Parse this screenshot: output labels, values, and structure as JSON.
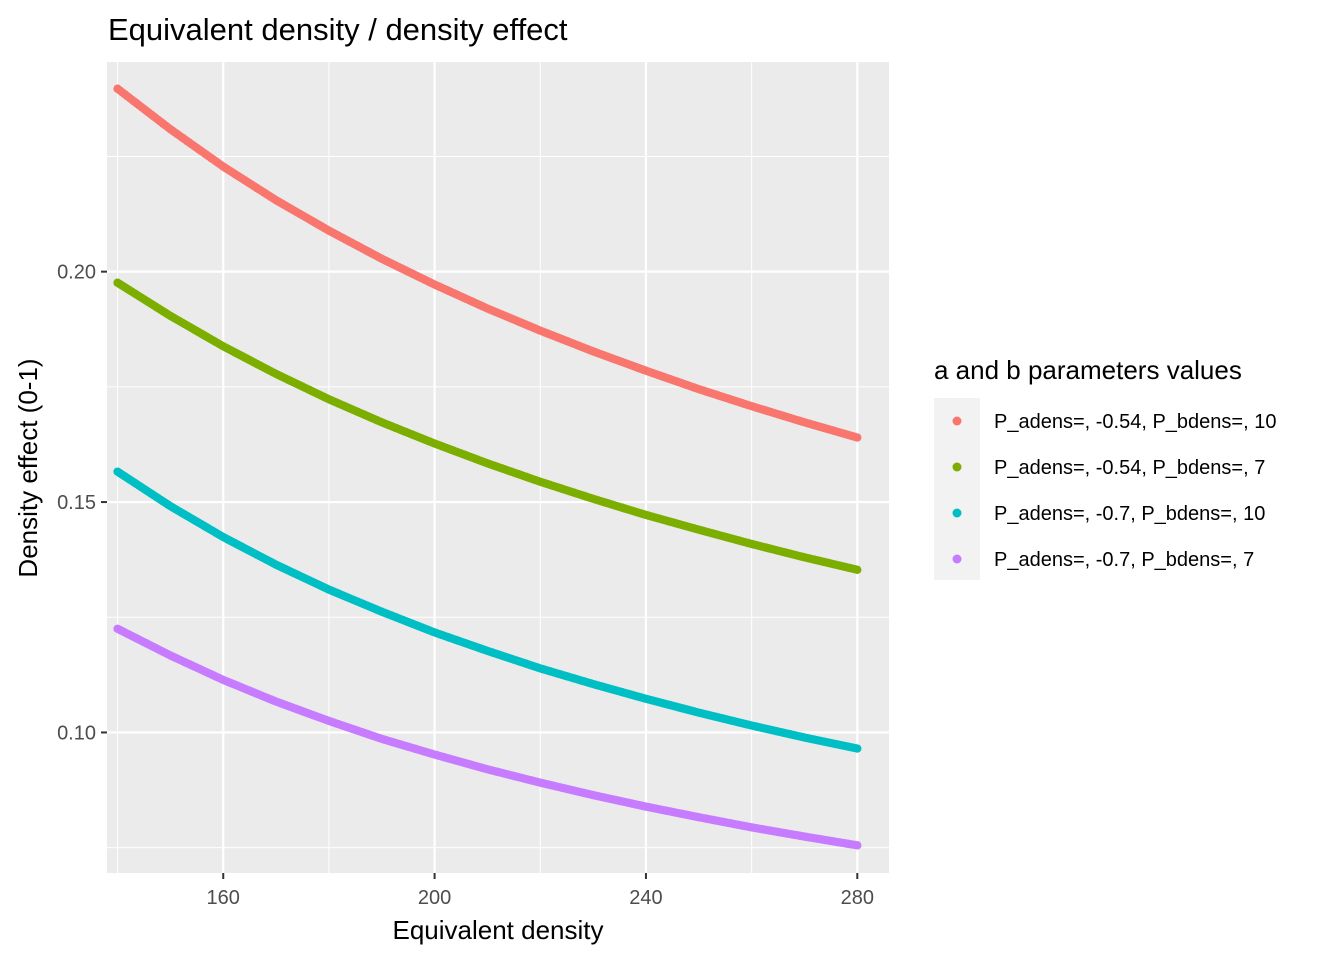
{
  "chart_data": {
    "type": "scatter",
    "title": "Equivalent density / density effect",
    "xlabel": "Equivalent density",
    "ylabel": "Density effect (0-1)",
    "xlim": [
      138,
      286
    ],
    "ylim": [
      0.0695,
      0.2455
    ],
    "x_ticks": [
      160,
      200,
      240,
      280
    ],
    "x_tick_labels": [
      "160",
      "200",
      "240",
      "280"
    ],
    "y_ticks": [
      0.1,
      0.15,
      0.2
    ],
    "y_tick_labels": [
      "0.10",
      "0.15",
      "0.20"
    ],
    "grid": true,
    "legend": {
      "title": "a and b parameters values",
      "position": "right"
    },
    "x": [
      140,
      150,
      160,
      170,
      180,
      190,
      200,
      210,
      220,
      230,
      240,
      250,
      260,
      270,
      280
    ],
    "series": [
      {
        "name": "P_adens=, -0.54, P_bdens=, 10",
        "color": "#F8766D",
        "values": [
          0.2397,
          0.2309,
          0.2228,
          0.2155,
          0.2089,
          0.2028,
          0.1972,
          0.192,
          0.1872,
          0.1827,
          0.1785,
          0.1745,
          0.1708,
          0.1673,
          0.164
        ]
      },
      {
        "name": "P_adens=, -0.54, P_bdens=, 7",
        "color": "#7CAE00",
        "values": [
          0.1976,
          0.1904,
          0.1838,
          0.1778,
          0.1723,
          0.1673,
          0.1627,
          0.1584,
          0.1544,
          0.1507,
          0.1472,
          0.144,
          0.1409,
          0.138,
          0.1353
        ]
      },
      {
        "name": "P_adens=, -0.7, P_bdens=, 10",
        "color": "#00BFC4",
        "values": [
          0.1566,
          0.1491,
          0.1424,
          0.1364,
          0.131,
          0.1262,
          0.1217,
          0.1177,
          0.1139,
          0.1105,
          0.1073,
          0.1043,
          0.1015,
          0.0989,
          0.0965
        ]
      },
      {
        "name": "P_adens=, -0.7, P_bdens=, 7",
        "color": "#C77CFF",
        "values": [
          0.1225,
          0.1167,
          0.1114,
          0.1067,
          0.1025,
          0.0986,
          0.0952,
          0.092,
          0.0891,
          0.0864,
          0.0839,
          0.0816,
          0.0794,
          0.0774,
          0.0755
        ]
      }
    ]
  }
}
